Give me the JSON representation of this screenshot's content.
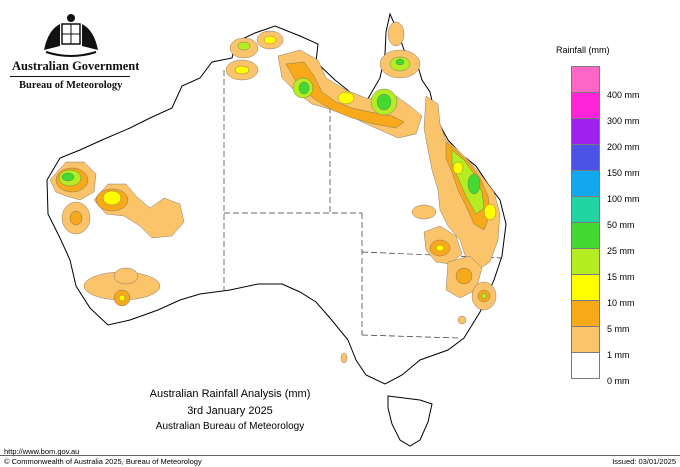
{
  "header": {
    "government": "Australian Government",
    "bureau": "Bureau of Meteorology"
  },
  "legend": {
    "title": "Rainfall (mm)",
    "items": [
      {
        "label": "400 mm",
        "color": "#ff66c6"
      },
      {
        "label": "300 mm",
        "color": "#ff22d8"
      },
      {
        "label": "200 mm",
        "color": "#a020f0"
      },
      {
        "label": "150 mm",
        "color": "#4a52e8"
      },
      {
        "label": "100 mm",
        "color": "#12a8f0"
      },
      {
        "label": "50 mm",
        "color": "#22d4a4"
      },
      {
        "label": "25 mm",
        "color": "#44d832"
      },
      {
        "label": "15 mm",
        "color": "#b4ee22"
      },
      {
        "label": "10 mm",
        "color": "#ffff00"
      },
      {
        "label": "5 mm",
        "color": "#f7a91a"
      },
      {
        "label": "1 mm",
        "color": "#fbc36a"
      },
      {
        "label": "0 mm",
        "color": "#ffffff"
      }
    ]
  },
  "title": {
    "line1": "Australian Rainfall Analysis (mm)",
    "line2": "3rd January 2025",
    "line3": "Australian Bureau of Meteorology"
  },
  "footer": {
    "url": "http://www.bom.gov.au",
    "copyright": "© Commonwealth of Australia 2025, Bureau of Meteorology",
    "issued": "Issued: 03/01/2025"
  }
}
